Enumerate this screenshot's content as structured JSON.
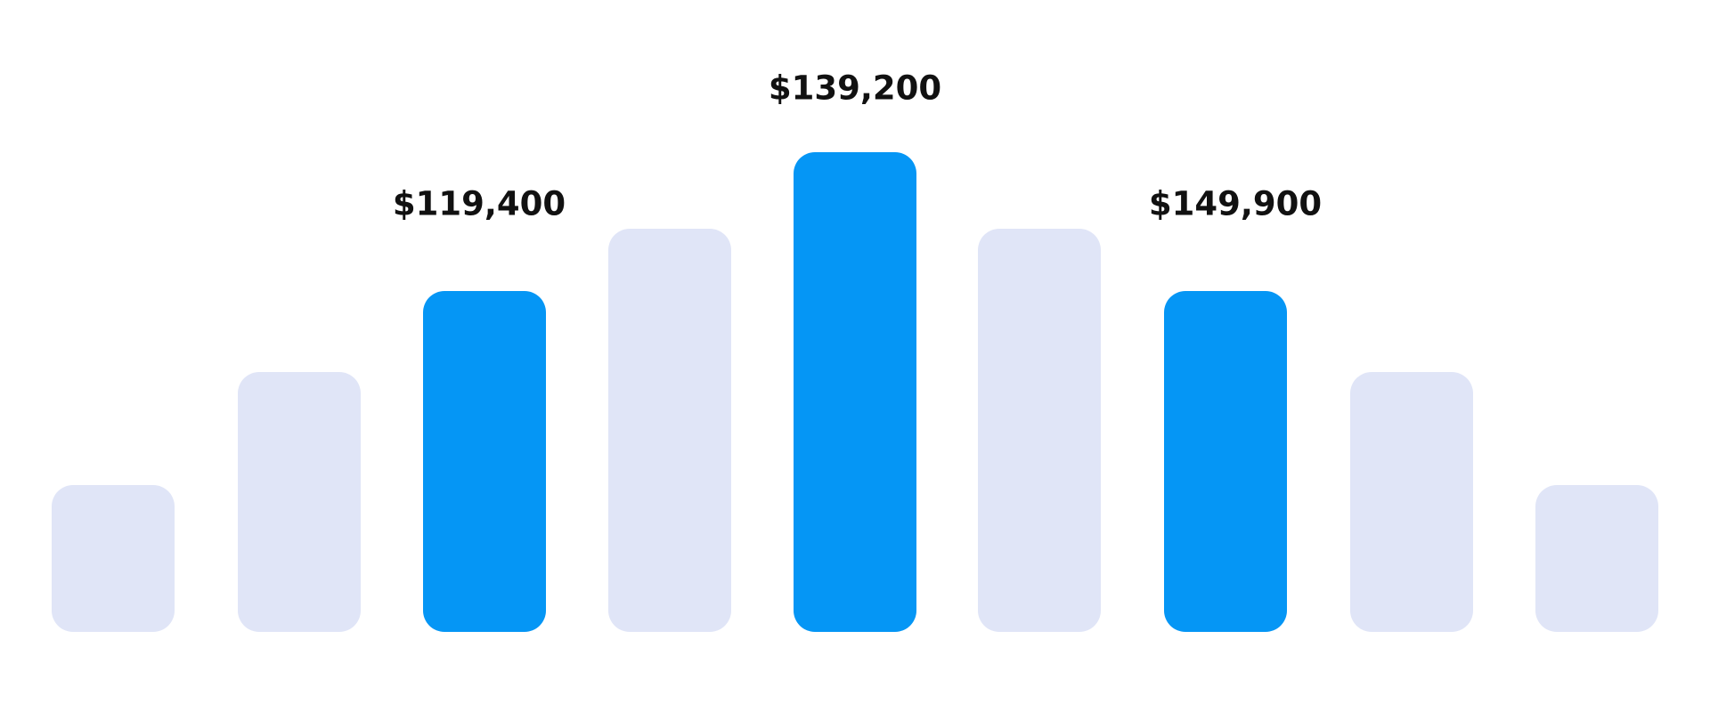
{
  "labels": {
    "left": "$119,400",
    "center": "$139,200",
    "right": "$149,900"
  }
}
